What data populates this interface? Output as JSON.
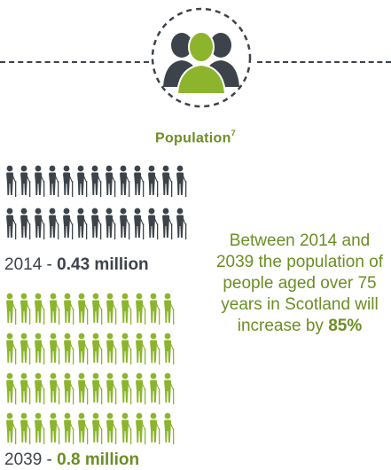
{
  "section": {
    "title": "Population",
    "footnote": "7"
  },
  "stats": [
    {
      "year": "2014",
      "separator": " - ",
      "value": "0.43 million",
      "icon_rows": 2,
      "icons_per_row": 13,
      "color": "#3d434a"
    },
    {
      "year": "2039",
      "separator": " - ",
      "value": "0.8 million",
      "icon_rows": 4,
      "icons_per_row": 12,
      "color": "#6b8e23"
    }
  ],
  "fact": {
    "text": "Between 2014 and 2039 the population of people aged over 75 years in Scotland will increase by",
    "highlight": "85%"
  },
  "icons": {
    "badge": "people-group-icon",
    "figure": "elderly-person-with-cane-icon"
  },
  "colors": {
    "dark": "#3d434a",
    "accent": "#6b8e23",
    "accent_light": "#8cb52d"
  }
}
